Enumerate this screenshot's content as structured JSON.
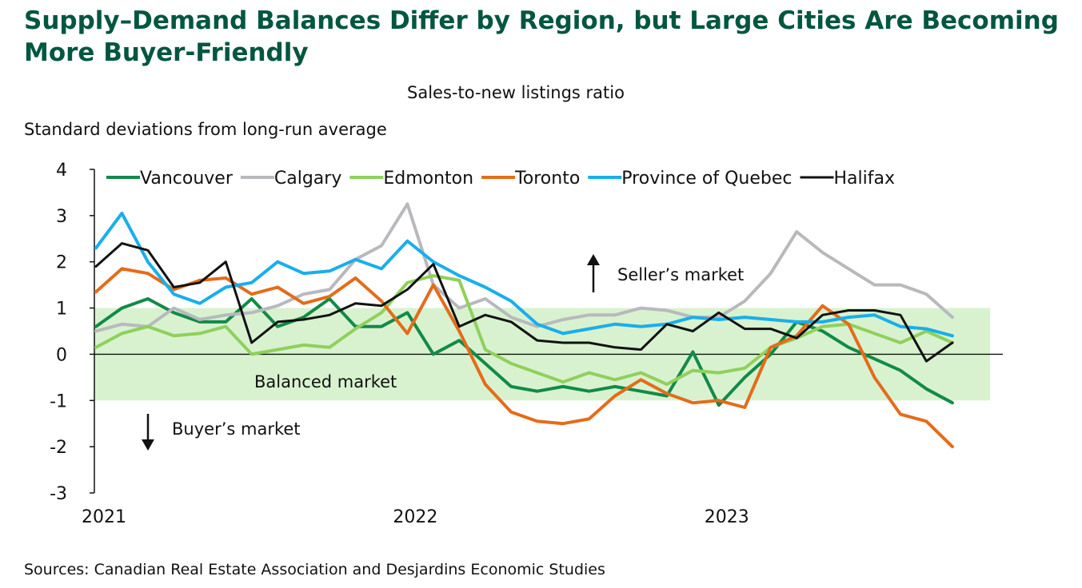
{
  "chart_data": {
    "type": "line",
    "title": "Supply–Demand Balances Differ by Region, but Large Cities Are Becoming More Buyer-Friendly",
    "subtitle": "Sales-to-new listings ratio",
    "ylabel": "Standard deviations from long-run average",
    "source": "Sources: Canadian Real Estate Association and Desjardins Economic Studies",
    "ylim": [
      -3,
      4
    ],
    "yticks": [
      "4",
      "3",
      "2",
      "1",
      "0",
      "-1",
      "-2",
      "-3"
    ],
    "ytick_values": [
      4,
      3,
      2,
      1,
      0,
      -1,
      -2,
      -3
    ],
    "xtick_labels": [
      "2021",
      "2022",
      "2023"
    ],
    "xtick_index": [
      0,
      12,
      24
    ],
    "n_points": 34,
    "band": {
      "from": -1,
      "to": 1,
      "color": "#d8f2cf"
    },
    "annotations": {
      "seller": "Seller’s market",
      "balanced": "Balanced market",
      "buyer": "Buyer’s market"
    },
    "series": [
      {
        "name": "Vancouver",
        "color": "#128a48",
        "values": [
          0.6,
          1.0,
          1.2,
          0.9,
          0.7,
          0.7,
          1.2,
          0.6,
          0.8,
          1.2,
          0.6,
          0.6,
          0.9,
          0.0,
          0.3,
          -0.2,
          -0.7,
          -0.8,
          -0.7,
          -0.8,
          -0.7,
          -0.8,
          -0.9,
          0.05,
          -1.1,
          -0.5,
          0.0,
          0.7,
          0.5,
          0.15,
          -0.1,
          -0.35,
          -0.75,
          -1.05
        ]
      },
      {
        "name": "Calgary",
        "color": "#b8b9bd",
        "values": [
          0.5,
          0.65,
          0.6,
          1.0,
          0.75,
          0.85,
          0.9,
          1.05,
          1.3,
          1.4,
          2.05,
          2.35,
          3.25,
          1.5,
          1.0,
          1.2,
          0.8,
          0.6,
          0.75,
          0.85,
          0.85,
          1.0,
          0.95,
          0.8,
          0.8,
          1.15,
          1.75,
          2.65,
          2.2,
          1.85,
          1.5,
          1.5,
          1.3,
          0.8
        ]
      },
      {
        "name": "Edmonton",
        "color": "#8fd05c",
        "values": [
          0.15,
          0.45,
          0.6,
          0.4,
          0.45,
          0.6,
          0.0,
          0.1,
          0.2,
          0.15,
          0.55,
          0.9,
          1.55,
          1.7,
          1.6,
          0.1,
          -0.2,
          -0.4,
          -0.6,
          -0.4,
          -0.55,
          -0.4,
          -0.65,
          -0.35,
          -0.4,
          -0.3,
          0.15,
          0.35,
          0.6,
          0.65,
          0.45,
          0.25,
          0.5,
          0.25
        ]
      },
      {
        "name": "Toronto",
        "color": "#e46c1a",
        "values": [
          1.35,
          1.85,
          1.75,
          1.4,
          1.6,
          1.65,
          1.3,
          1.45,
          1.1,
          1.25,
          1.65,
          1.15,
          0.45,
          1.5,
          0.5,
          -0.65,
          -1.25,
          -1.45,
          -1.5,
          -1.4,
          -0.9,
          -0.55,
          -0.85,
          -1.05,
          -1.0,
          -1.15,
          0.15,
          0.4,
          1.05,
          0.65,
          -0.5,
          -1.3,
          -1.45,
          -2.0
        ]
      },
      {
        "name": "Province of Quebec",
        "color": "#19aeec",
        "values": [
          2.3,
          3.05,
          2.0,
          1.3,
          1.1,
          1.45,
          1.55,
          2.0,
          1.75,
          1.8,
          2.05,
          1.85,
          2.45,
          2.0,
          1.7,
          1.45,
          1.15,
          0.65,
          0.45,
          0.55,
          0.65,
          0.6,
          0.65,
          0.8,
          0.75,
          0.8,
          0.75,
          0.7,
          0.7,
          0.8,
          0.85,
          0.6,
          0.55,
          0.4
        ]
      },
      {
        "name": "Halifax",
        "color": "#111111",
        "values": [
          1.9,
          2.4,
          2.25,
          1.45,
          1.55,
          2.0,
          0.25,
          0.7,
          0.75,
          0.85,
          1.1,
          1.05,
          1.4,
          1.95,
          0.6,
          0.85,
          0.7,
          0.3,
          0.25,
          0.25,
          0.15,
          0.1,
          0.65,
          0.5,
          0.9,
          0.55,
          0.55,
          0.35,
          0.85,
          0.95,
          0.95,
          0.85,
          -0.15,
          0.25
        ]
      }
    ]
  }
}
